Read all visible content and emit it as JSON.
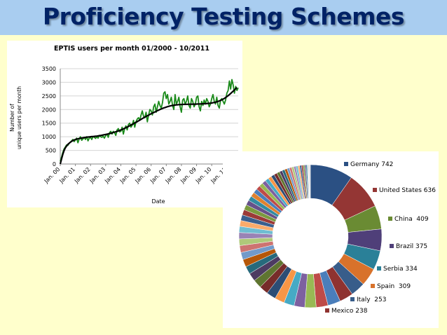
{
  "slide": {
    "title": "Proficiency Testing Schemes"
  },
  "chart_data": [
    {
      "type": "line",
      "title": "EPTIS users per month 01/2000 - 10/2011",
      "xlabel": "Date",
      "ylabel": "Number of unique users per month",
      "ylim": [
        0,
        3500
      ],
      "yticks": [
        "0",
        "500",
        "1000",
        "1500",
        "2000",
        "2500",
        "3000",
        "3500"
      ],
      "xticks": [
        "Jan. 00",
        "Jan. 01",
        "Jan. 02",
        "Jan. 03",
        "Jan. 04",
        "Jan. 05",
        "Jan. 06",
        "Jan. 07",
        "Jan. 08",
        "Jan. 09",
        "Jan. 10",
        "Jan. 11"
      ],
      "grid": true,
      "series": [
        {
          "color": "#1a8a1a",
          "values": [
            100,
            250,
            420,
            550,
            620,
            700,
            680,
            760,
            800,
            850,
            900,
            820,
            880,
            950,
            780,
            920,
            1000,
            870,
            920,
            980,
            900,
            1000,
            850,
            950,
            980,
            900,
            1010,
            980,
            940,
            1000,
            950,
            1050,
            1000,
            980,
            1020,
            950,
            1050,
            1100,
            980,
            1150,
            1200,
            1100,
            1200,
            1150,
            1050,
            1250,
            1300,
            1180,
            1200,
            1350,
            1100,
            1300,
            1400,
            1250,
            1450,
            1500,
            1350,
            1420,
            1600,
            1350,
            1550,
            1650,
            1700,
            1600,
            1800,
            1950,
            1750,
            1700,
            1900,
            1550,
            1800,
            2000,
            1950,
            1800,
            2100,
            2200,
            1900,
            2100,
            2300,
            2150,
            2050,
            2250,
            2600,
            2650,
            2400,
            2550,
            2200,
            2300,
            2450,
            2150,
            2000,
            2550,
            2200,
            2300,
            2450,
            2100,
            1900,
            2350,
            2400,
            2200,
            2300,
            2500,
            2150,
            2050,
            2400,
            2300,
            2100,
            2200,
            2450,
            2500,
            2100,
            1950,
            2300,
            2150,
            2350,
            2200,
            2400,
            2300,
            2100,
            2200,
            2400,
            2550,
            2300,
            2200,
            2450,
            2150,
            2050,
            2350,
            2400,
            2300,
            2200,
            2350,
            2600,
            2700,
            3050,
            2750,
            3100,
            2900,
            2600,
            2850,
            2700,
            2800
          ]
        },
        {
          "color": "#000000",
          "values": [
            0,
            180,
            350,
            490,
            590,
            660,
            720,
            760,
            800,
            830,
            860,
            880,
            900,
            915,
            925,
            935,
            945,
            955,
            963,
            970,
            978,
            985,
            990,
            995,
            1000,
            1005,
            1010,
            1015,
            1020,
            1025,
            1032,
            1040,
            1048,
            1056,
            1065,
            1075,
            1085,
            1095,
            1105,
            1115,
            1127,
            1140,
            1155,
            1170,
            1185,
            1200,
            1215,
            1232,
            1250,
            1270,
            1290,
            1310,
            1332,
            1355,
            1380,
            1405,
            1430,
            1455,
            1480,
            1505,
            1530,
            1558,
            1585,
            1612,
            1640,
            1667,
            1694,
            1720,
            1745,
            1770,
            1795,
            1820,
            1845,
            1868,
            1890,
            1912,
            1935,
            1958,
            1980,
            2000,
            2020,
            2040,
            2058,
            2075,
            2090,
            2105,
            2118,
            2130,
            2140,
            2150,
            2158,
            2165,
            2170,
            2175,
            2180,
            2183,
            2186,
            2188,
            2190,
            2191,
            2192,
            2193,
            2194,
            2195,
            2196,
            2197,
            2198,
            2199,
            2200,
            2202,
            2204,
            2206,
            2208,
            2210,
            2213,
            2216,
            2219,
            2223,
            2228,
            2234,
            2240,
            2248,
            2258,
            2270,
            2283,
            2298,
            2315,
            2335,
            2358,
            2383,
            2410,
            2440,
            2475,
            2510,
            2548,
            2590,
            2632,
            2675,
            2720,
            2765,
            2810
          ]
        }
      ]
    },
    {
      "type": "pie",
      "subtype": "donut",
      "labels": [
        "Germany 742",
        "United States 636",
        "China  409",
        "Brazil 375",
        "Serbia 334",
        "Spain  309",
        "Italy  253",
        "Mexico 238"
      ],
      "values": [
        742,
        636,
        409,
        375,
        334,
        309,
        253,
        238
      ],
      "colors": [
        "#2b5083",
        "#943634",
        "#6a8b33",
        "#4f3f79",
        "#2a8098",
        "#d8722b",
        "#385d8a",
        "#8f3330"
      ],
      "other_slices": [
        220,
        205,
        195,
        185,
        178,
        170,
        163,
        155,
        148,
        142,
        136,
        130,
        125,
        120,
        115,
        110,
        106,
        102,
        98,
        94,
        90,
        86,
        82,
        78,
        75,
        72,
        69,
        66,
        63,
        60,
        57,
        54,
        51,
        48,
        46,
        44,
        42,
        40,
        38,
        36,
        34,
        32,
        30,
        28,
        26,
        24,
        22,
        20,
        18,
        16
      ],
      "other_colors": [
        "#4a7ebb",
        "#be4b48",
        "#98b954",
        "#7d60a0",
        "#46aac5",
        "#f79646",
        "#2c4d75",
        "#772c2a",
        "#5f7530",
        "#4d3b62",
        "#276a7c",
        "#b65708",
        "#729aca",
        "#cd7371",
        "#afc97a",
        "#9983b5",
        "#6fbdd1",
        "#f9ab6b",
        "#3a5f8e",
        "#9c3a37",
        "#7b9a3f",
        "#66518a",
        "#338ba2",
        "#e0822f"
      ]
    }
  ]
}
